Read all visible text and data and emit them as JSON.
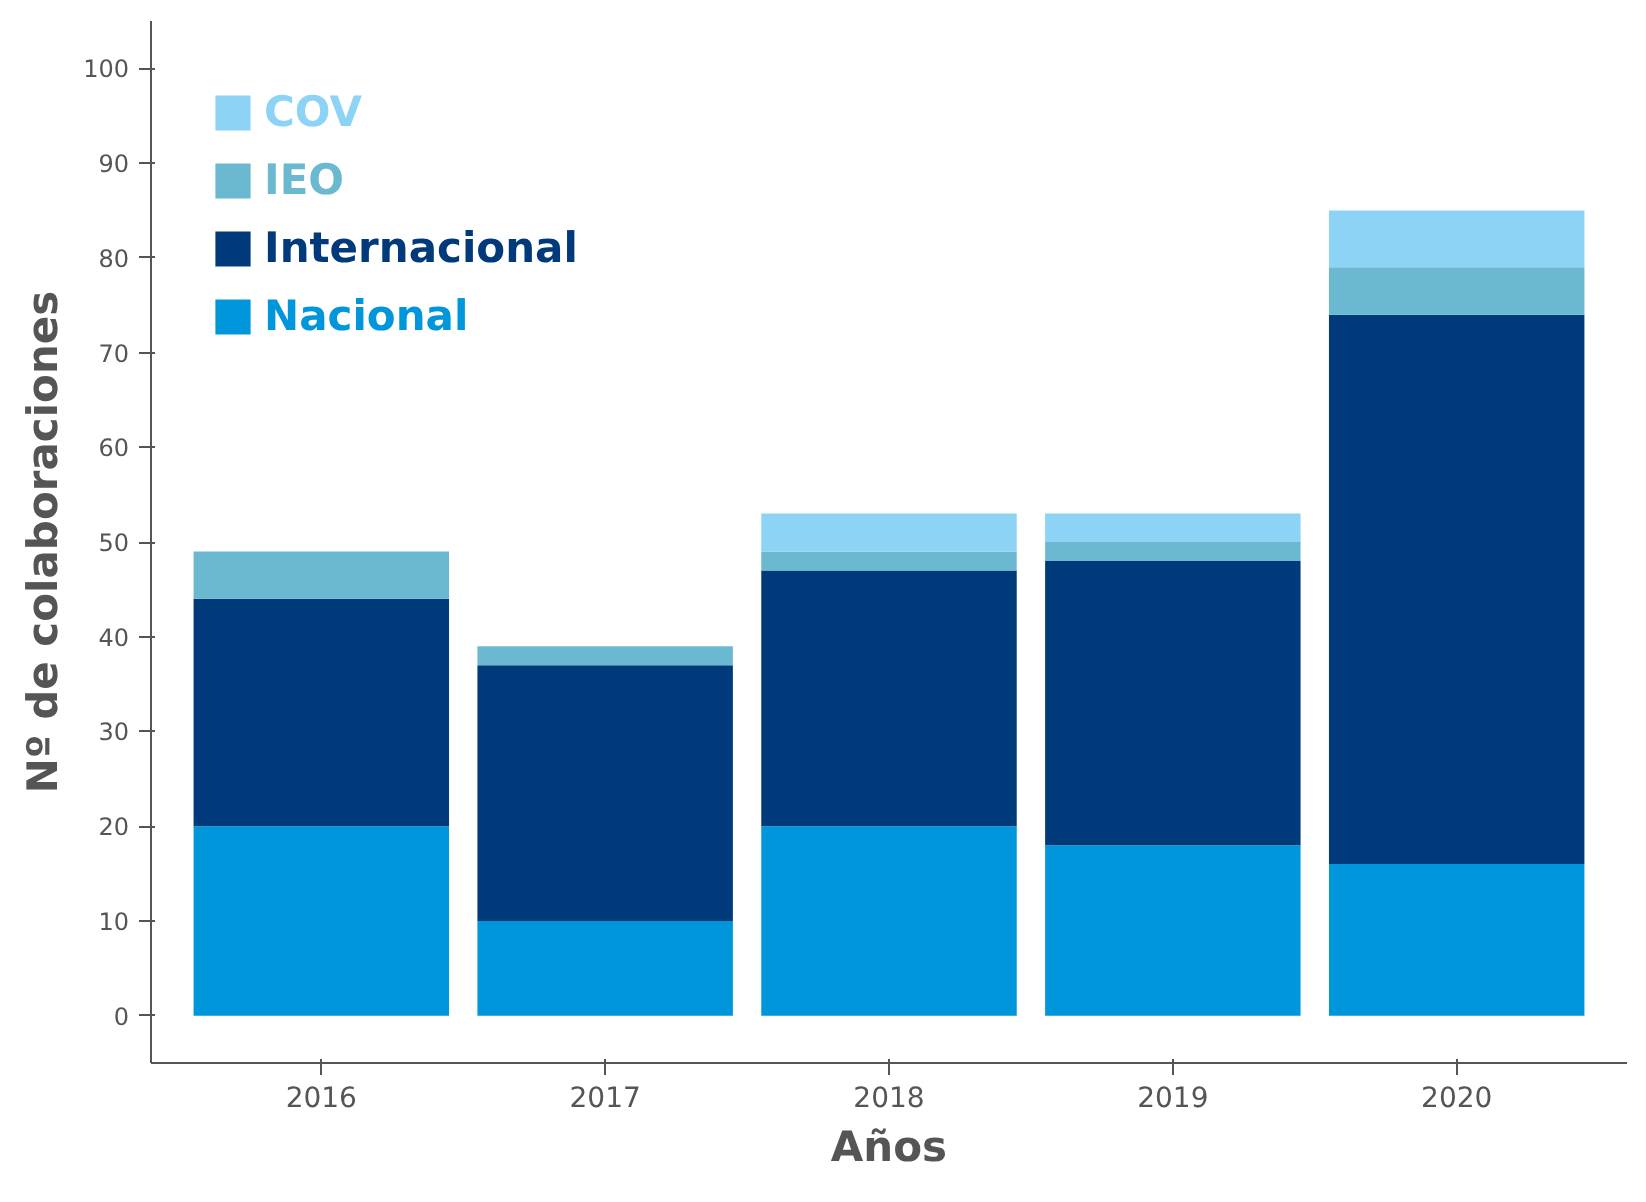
{
  "chart_data": {
    "type": "bar",
    "stacked": true,
    "xlabel": "Años",
    "ylabel": "Nº de colaboraciones",
    "categories": [
      "2016",
      "2017",
      "2018",
      "2019",
      "2020"
    ],
    "series": [
      {
        "name": "Nacional",
        "color": "#0096db",
        "values": [
          20,
          10,
          20,
          18,
          16
        ]
      },
      {
        "name": "Internacional",
        "color": "#003a7a",
        "values": [
          24,
          27,
          27,
          30,
          58
        ]
      },
      {
        "name": "IEO",
        "color": "#6bb8d1",
        "values": [
          5,
          2,
          2,
          2,
          5
        ]
      },
      {
        "name": "COV",
        "color": "#8dd3f5",
        "values": [
          0,
          0,
          4,
          3,
          6
        ]
      }
    ],
    "ylim": [
      -5,
      105
    ],
    "yticks": [
      0,
      10,
      20,
      30,
      40,
      50,
      60,
      70,
      80,
      90,
      100
    ],
    "grid": false,
    "legend": "top left"
  }
}
